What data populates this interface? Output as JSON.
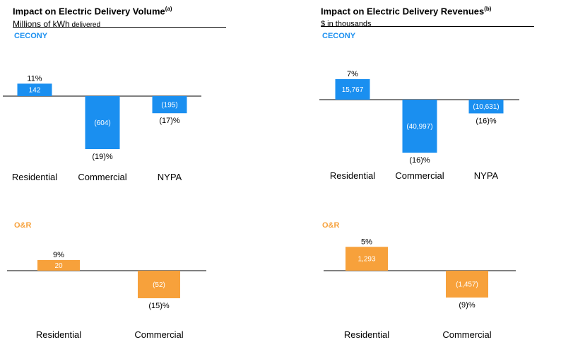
{
  "panels": [
    {
      "title": "Impact on Electric Delivery Volume",
      "title_sup": "(a)",
      "subtitle_main": "Millions of kWh",
      "subtitle_rest": " delivered"
    },
    {
      "title": "Impact on Electric Delivery Revenues",
      "title_sup": "(b)",
      "subtitle_main": "$ in thousands",
      "subtitle_rest": ""
    }
  ],
  "colors": {
    "CECONY": "#1a8ff0",
    "O&R": "#f7a13b"
  },
  "chart_data": [
    {
      "type": "bar",
      "panel": "Impact on Electric Delivery Volume",
      "company": "CECONY",
      "categories": [
        "Residential",
        "Commercial",
        "NYPA"
      ],
      "values": [
        142,
        -604,
        -195
      ],
      "value_labels": [
        "142",
        "(604)",
        "(195)"
      ],
      "percent_labels": [
        "11%",
        "(19)%",
        "(17)%"
      ],
      "color": "#1a8ff0"
    },
    {
      "type": "bar",
      "panel": "Impact on Electric Delivery Revenues",
      "company": "CECONY",
      "categories": [
        "Residential",
        "Commercial",
        "NYPA"
      ],
      "values": [
        15767,
        -40997,
        -10631
      ],
      "value_labels": [
        "15,767",
        "(40,997)",
        "(10,631)"
      ],
      "percent_labels": [
        "7%",
        "(16)%",
        "(16)%"
      ],
      "color": "#1a8ff0"
    },
    {
      "type": "bar",
      "panel": "Impact on Electric Delivery Volume",
      "company": "O&R",
      "categories": [
        "Residential",
        "Commercial"
      ],
      "values": [
        20,
        -52
      ],
      "value_labels": [
        "20",
        "(52)"
      ],
      "percent_labels": [
        "9%",
        "(15)%"
      ],
      "color": "#f7a13b"
    },
    {
      "type": "bar",
      "panel": "Impact on Electric Delivery Revenues",
      "company": "O&R",
      "categories": [
        "Residential",
        "Commercial"
      ],
      "values": [
        1293,
        -1457
      ],
      "value_labels": [
        "1,293",
        "(1,457)"
      ],
      "percent_labels": [
        "5%",
        "(9)%"
      ],
      "color": "#f7a13b"
    }
  ]
}
